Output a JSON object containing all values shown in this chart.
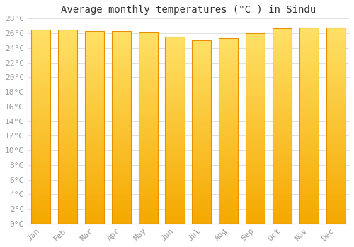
{
  "title": "Average monthly temperatures (°C ) in Sindu",
  "months": [
    "Jan",
    "Feb",
    "Mar",
    "Apr",
    "May",
    "Jun",
    "Jul",
    "Aug",
    "Sep",
    "Oct",
    "Nov",
    "Dec"
  ],
  "values": [
    26.5,
    26.5,
    26.3,
    26.3,
    26.1,
    25.5,
    25.0,
    25.3,
    26.0,
    26.7,
    26.8,
    26.8
  ],
  "bar_color_bottom": "#F5A800",
  "bar_color_top": "#FFE066",
  "bar_edge_color": "#E89000",
  "ylim": [
    0,
    28
  ],
  "yticks": [
    0,
    2,
    4,
    6,
    8,
    10,
    12,
    14,
    16,
    18,
    20,
    22,
    24,
    26,
    28
  ],
  "ytick_labels": [
    "0°C",
    "2°C",
    "4°C",
    "6°C",
    "8°C",
    "10°C",
    "12°C",
    "14°C",
    "16°C",
    "18°C",
    "20°C",
    "22°C",
    "24°C",
    "26°C",
    "28°C"
  ],
  "grid_color": "#e0e0e0",
  "background_color": "#ffffff",
  "title_fontsize": 10,
  "tick_fontsize": 8,
  "tick_color": "#999999",
  "font_family": "monospace",
  "bar_width": 0.72,
  "n_grad": 200
}
